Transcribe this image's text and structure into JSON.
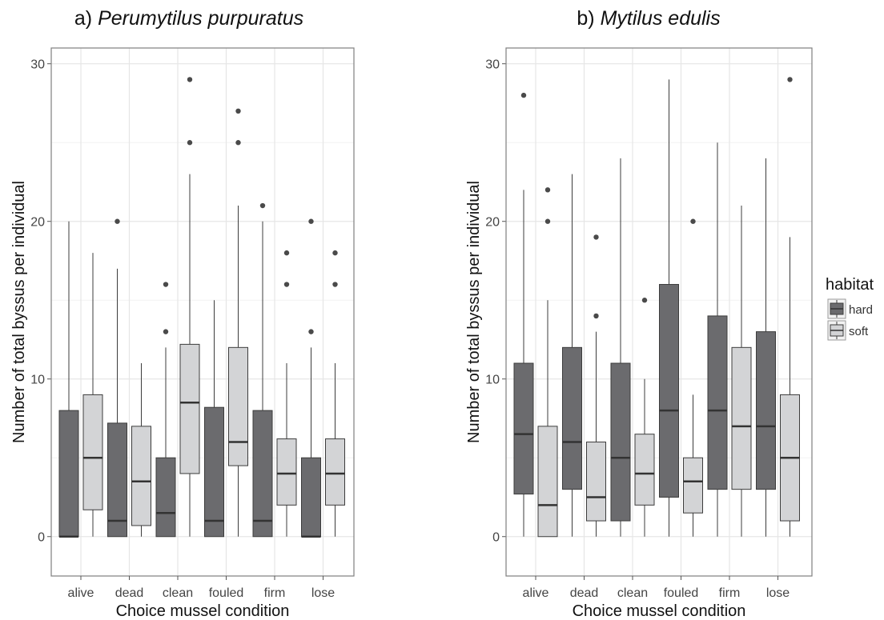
{
  "chart_data": [
    {
      "type": "box",
      "panel_label": "a)",
      "title": "Perumytilus purpuratus",
      "xlabel": "Choice mussel condition",
      "ylabel": "Number of total byssus per individual",
      "categories": [
        "alive",
        "dead",
        "clean",
        "fouled",
        "firm",
        "lose"
      ],
      "ylim": [
        -2.5,
        31
      ],
      "yticks": [
        "0",
        "10",
        "20",
        "30"
      ],
      "grid": true,
      "series": [
        {
          "name": "hard",
          "boxes": [
            {
              "whisker_low": 0,
              "q1": 0,
              "median": 0,
              "q3": 8,
              "whisker_high": 20,
              "outliers": []
            },
            {
              "whisker_low": 0,
              "q1": 0,
              "median": 1,
              "q3": 7.2,
              "whisker_high": 17,
              "outliers": [
                20
              ]
            },
            {
              "whisker_low": 0,
              "q1": 0,
              "median": 1.5,
              "q3": 5,
              "whisker_high": 12,
              "outliers": [
                13,
                16
              ]
            },
            {
              "whisker_low": 0,
              "q1": 0,
              "median": 1,
              "q3": 8.2,
              "whisker_high": 15,
              "outliers": []
            },
            {
              "whisker_low": 0,
              "q1": 0,
              "median": 1,
              "q3": 8,
              "whisker_high": 20,
              "outliers": [
                21
              ]
            },
            {
              "whisker_low": 0,
              "q1": 0,
              "median": 0,
              "q3": 5,
              "whisker_high": 12,
              "outliers": [
                13,
                20
              ]
            }
          ]
        },
        {
          "name": "soft",
          "boxes": [
            {
              "whisker_low": 0,
              "q1": 1.7,
              "median": 5,
              "q3": 9,
              "whisker_high": 18,
              "outliers": []
            },
            {
              "whisker_low": 0,
              "q1": 0.7,
              "median": 3.5,
              "q3": 7,
              "whisker_high": 11,
              "outliers": []
            },
            {
              "whisker_low": 0,
              "q1": 4,
              "median": 8.5,
              "q3": 12.2,
              "whisker_high": 23,
              "outliers": [
                25,
                29
              ]
            },
            {
              "whisker_low": 0,
              "q1": 4.5,
              "median": 6,
              "q3": 12,
              "whisker_high": 21,
              "outliers": [
                25,
                27
              ]
            },
            {
              "whisker_low": 0,
              "q1": 2,
              "median": 4,
              "q3": 6.2,
              "whisker_high": 11,
              "outliers": [
                16,
                18
              ]
            },
            {
              "whisker_low": 0,
              "q1": 2,
              "median": 4,
              "q3": 6.2,
              "whisker_high": 11,
              "outliers": [
                16,
                18
              ]
            }
          ]
        }
      ]
    },
    {
      "type": "box",
      "panel_label": "b)",
      "title": "Mytilus edulis",
      "xlabel": "Choice mussel condition",
      "ylabel": "Number of total byssus per individual",
      "categories": [
        "alive",
        "dead",
        "clean",
        "fouled",
        "firm",
        "lose"
      ],
      "ylim": [
        -2.5,
        31
      ],
      "yticks": [
        "0",
        "10",
        "20",
        "30"
      ],
      "grid": true,
      "series": [
        {
          "name": "hard",
          "boxes": [
            {
              "whisker_low": 0,
              "q1": 2.7,
              "median": 6.5,
              "q3": 11,
              "whisker_high": 22,
              "outliers": [
                28
              ]
            },
            {
              "whisker_low": 0,
              "q1": 3,
              "median": 6,
              "q3": 12,
              "whisker_high": 23,
              "outliers": []
            },
            {
              "whisker_low": 0,
              "q1": 1,
              "median": 5,
              "q3": 11,
              "whisker_high": 24,
              "outliers": []
            },
            {
              "whisker_low": 0,
              "q1": 2.5,
              "median": 8,
              "q3": 16,
              "whisker_high": 29,
              "outliers": []
            },
            {
              "whisker_low": 0,
              "q1": 3,
              "median": 8,
              "q3": 14,
              "whisker_high": 25,
              "outliers": []
            },
            {
              "whisker_low": 0,
              "q1": 3,
              "median": 7,
              "q3": 13,
              "whisker_high": 24,
              "outliers": []
            }
          ]
        },
        {
          "name": "soft",
          "boxes": [
            {
              "whisker_low": 0,
              "q1": 0,
              "median": 2,
              "q3": 7,
              "whisker_high": 15,
              "outliers": [
                20,
                22
              ]
            },
            {
              "whisker_low": 0,
              "q1": 1,
              "median": 2.5,
              "q3": 6,
              "whisker_high": 13,
              "outliers": [
                14,
                19
              ]
            },
            {
              "whisker_low": 0,
              "q1": 2,
              "median": 4,
              "q3": 6.5,
              "whisker_high": 10,
              "outliers": [
                15
              ]
            },
            {
              "whisker_low": 0,
              "q1": 1.5,
              "median": 3.5,
              "q3": 5,
              "whisker_high": 9,
              "outliers": [
                20
              ]
            },
            {
              "whisker_low": 0,
              "q1": 3,
              "median": 7,
              "q3": 12,
              "whisker_high": 21,
              "outliers": []
            },
            {
              "whisker_low": 0,
              "q1": 1,
              "median": 5,
              "q3": 9,
              "whisker_high": 19,
              "outliers": [
                29
              ]
            }
          ]
        }
      ]
    }
  ],
  "legend": {
    "title": "habitat",
    "placement": "right",
    "items": [
      {
        "label": "hard",
        "color": "#6b6b6e"
      },
      {
        "label": "soft",
        "color": "#d3d4d6"
      }
    ]
  },
  "colors": {
    "hard": "#6b6b6e",
    "soft": "#d3d4d6",
    "stroke": "#3c3c3c",
    "median": "#333333",
    "grid": "#e6e6e6",
    "frame": "#7f7f7f",
    "outlier": "#4a4a4a"
  }
}
